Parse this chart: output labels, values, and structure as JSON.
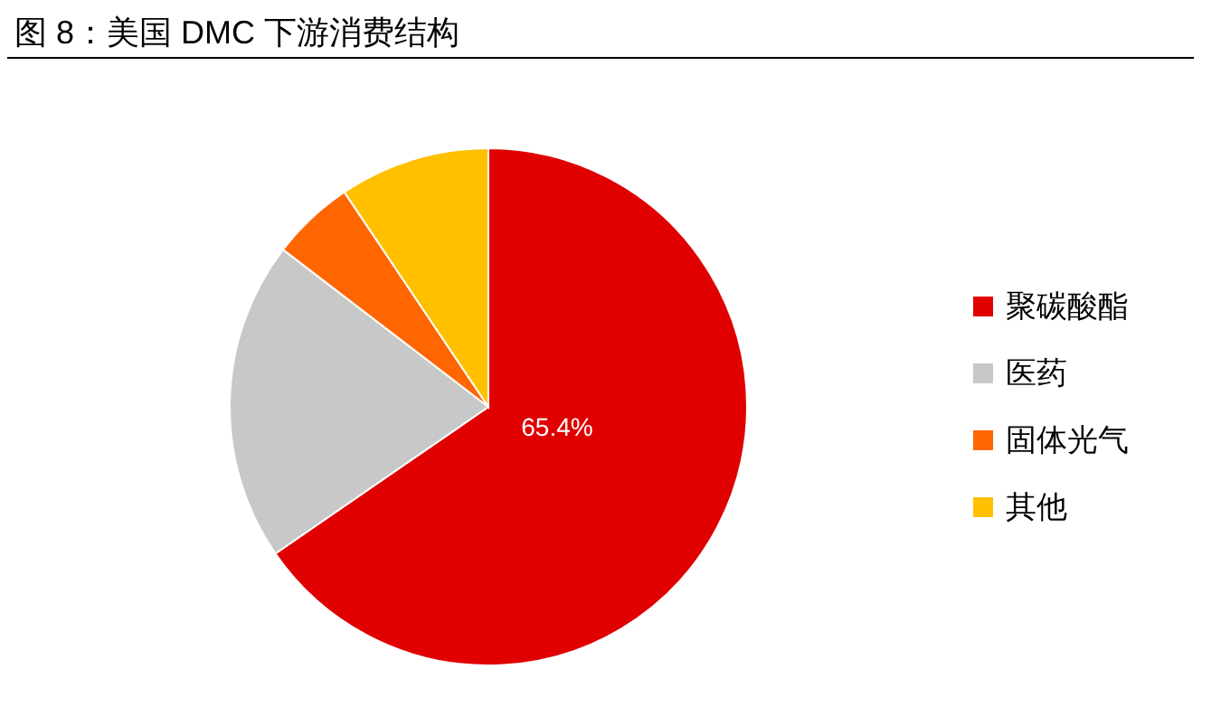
{
  "chart_data": {
    "type": "pie",
    "title": "图 8：美国 DMC 下游消费结构",
    "categories": [
      "聚碳酸酯",
      "医药",
      "固体光气",
      "其他"
    ],
    "values": [
      65.4,
      20.0,
      5.2,
      9.4
    ],
    "colors": [
      "#e00000",
      "#c8c8c8",
      "#ff6600",
      "#ffc000"
    ],
    "value_labels": [
      "65.4%",
      null,
      null,
      null
    ],
    "legend": "right"
  }
}
